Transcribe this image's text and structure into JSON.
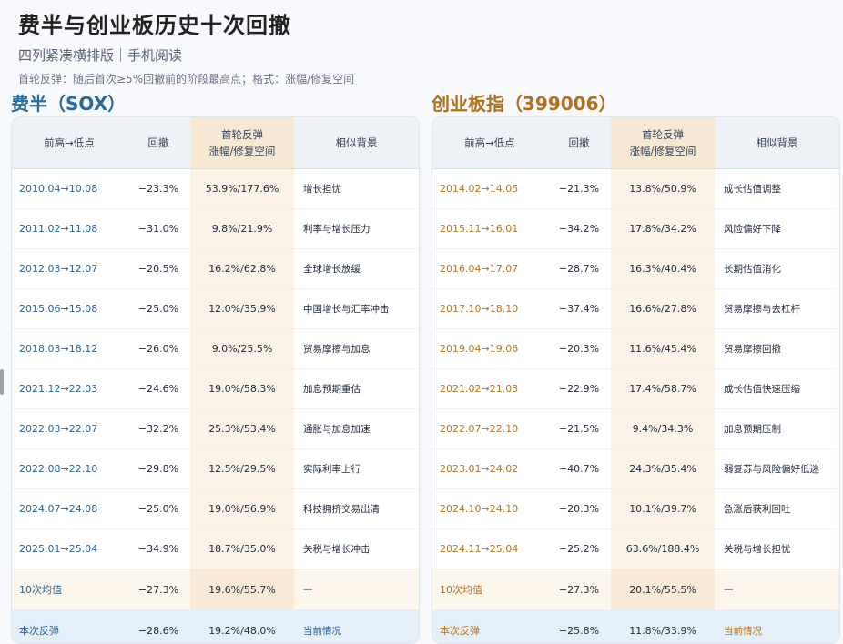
{
  "title": "费半与创业板历史十次回撤",
  "subtitle": "四列紧凑横排版｜手机阅读",
  "note": "首轮反弹：随后首次≥5%回撤前的阶段最高点；格式：涨幅/修复空间",
  "headers": {
    "period": "前高→低点",
    "drawdown": "回撤",
    "rebound_l1": "首轮反弹",
    "rebound_l2": "涨幅/修复空间",
    "background": "相似背景"
  },
  "left": {
    "title": "费半（SOX）",
    "rows": [
      {
        "period": "2010.04→10.08",
        "drawdown": "−23.3%",
        "rebound": "53.9%/177.6%",
        "background": "增长担忧"
      },
      {
        "period": "2011.02→11.08",
        "drawdown": "−31.0%",
        "rebound": "9.8%/21.9%",
        "background": "利率与增长压力"
      },
      {
        "period": "2012.03→12.07",
        "drawdown": "−20.5%",
        "rebound": "16.2%/62.8%",
        "background": "全球增长放缓"
      },
      {
        "period": "2015.06→15.08",
        "drawdown": "−25.0%",
        "rebound": "12.0%/35.9%",
        "background": "中国增长与汇率冲击"
      },
      {
        "period": "2018.03→18.12",
        "drawdown": "−26.0%",
        "rebound": "9.0%/25.5%",
        "background": "贸易摩擦与加息"
      },
      {
        "period": "2021.12→22.03",
        "drawdown": "−24.6%",
        "rebound": "19.0%/58.3%",
        "background": "加息预期重估"
      },
      {
        "period": "2022.03→22.07",
        "drawdown": "−32.2%",
        "rebound": "25.3%/53.4%",
        "background": "通胀与加息加速"
      },
      {
        "period": "2022.08→22.10",
        "drawdown": "−29.8%",
        "rebound": "12.5%/29.5%",
        "background": "实际利率上行"
      },
      {
        "period": "2024.07→24.08",
        "drawdown": "−25.0%",
        "rebound": "19.0%/56.9%",
        "background": "科技拥挤交易出清"
      },
      {
        "period": "2025.01→25.04",
        "drawdown": "−34.9%",
        "rebound": "18.7%/35.0%",
        "background": "关税与增长冲击"
      }
    ],
    "avg": {
      "period": "10次均值",
      "drawdown": "−27.3%",
      "rebound": "19.6%/55.7%",
      "background": "—"
    },
    "current": {
      "period": "本次反弹",
      "drawdown": "−28.6%",
      "rebound": "19.2%/48.0%",
      "background": "当前情况"
    }
  },
  "right": {
    "title": "创业板指（399006）",
    "rows": [
      {
        "period": "2014.02→14.05",
        "drawdown": "−21.3%",
        "rebound": "13.8%/50.9%",
        "background": "成长估值调整"
      },
      {
        "period": "2015.11→16.01",
        "drawdown": "−34.2%",
        "rebound": "17.8%/34.2%",
        "background": "风险偏好下降"
      },
      {
        "period": "2016.04→17.07",
        "drawdown": "−28.7%",
        "rebound": "16.3%/40.4%",
        "background": "长期估值消化"
      },
      {
        "period": "2017.10→18.10",
        "drawdown": "−37.4%",
        "rebound": "16.6%/27.8%",
        "background": "贸易摩擦与去杠杆"
      },
      {
        "period": "2019.04→19.06",
        "drawdown": "−20.3%",
        "rebound": "11.6%/45.4%",
        "background": "贸易摩擦回撤"
      },
      {
        "period": "2021.02→21.03",
        "drawdown": "−22.9%",
        "rebound": "17.4%/58.7%",
        "background": "成长估值快速压缩"
      },
      {
        "period": "2022.07→22.10",
        "drawdown": "−21.5%",
        "rebound": "9.4%/34.3%",
        "background": "加息预期压制"
      },
      {
        "period": "2023.01→24.02",
        "drawdown": "−40.7%",
        "rebound": "24.3%/35.4%",
        "background": "弱复苏与风险偏好低迷"
      },
      {
        "period": "2024.10→24.10",
        "drawdown": "−20.3%",
        "rebound": "10.1%/39.7%",
        "background": "急涨后获利回吐"
      },
      {
        "period": "2024.11→25.04",
        "drawdown": "−25.2%",
        "rebound": "63.6%/188.4%",
        "background": "关税与增长担忧"
      }
    ],
    "avg": {
      "period": "10次均值",
      "drawdown": "−27.3%",
      "rebound": "20.1%/55.5%",
      "background": "—"
    },
    "current": {
      "period": "本次反弹",
      "drawdown": "−25.8%",
      "rebound": "11.8%/33.9%",
      "background": "当前情况"
    }
  }
}
